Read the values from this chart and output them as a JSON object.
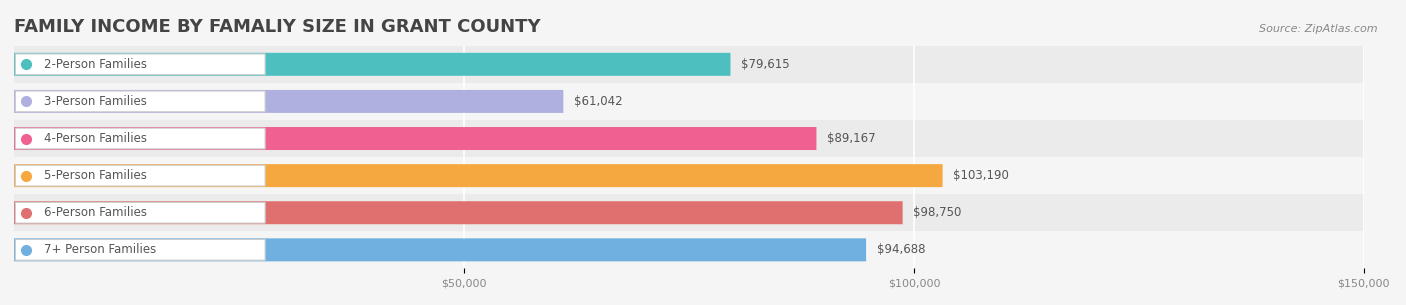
{
  "title": "FAMILY INCOME BY FAMALIY SIZE IN GRANT COUNTY",
  "source": "Source: ZipAtlas.com",
  "categories": [
    "2-Person Families",
    "3-Person Families",
    "4-Person Families",
    "5-Person Families",
    "6-Person Families",
    "7+ Person Families"
  ],
  "values": [
    79615,
    61042,
    89167,
    103190,
    98750,
    94688
  ],
  "bar_colors": [
    "#4dbfbf",
    "#b0b0e0",
    "#f06090",
    "#f5a840",
    "#e07070",
    "#70b0e0"
  ],
  "value_labels": [
    "$79,615",
    "$61,042",
    "$89,167",
    "$103,190",
    "$98,750",
    "$94,688"
  ],
  "xlim": [
    0,
    150000
  ],
  "xticks": [
    50000,
    100000,
    150000
  ],
  "xtick_labels": [
    "$50,000",
    "$100,000",
    "$150,000"
  ],
  "background_color": "#f5f5f5",
  "row_bg_colors": [
    "#e8e8e8",
    "#f0f0f0"
  ],
  "title_fontsize": 13,
  "label_fontsize": 8.5,
  "value_fontsize": 8.5,
  "bar_height": 0.62
}
